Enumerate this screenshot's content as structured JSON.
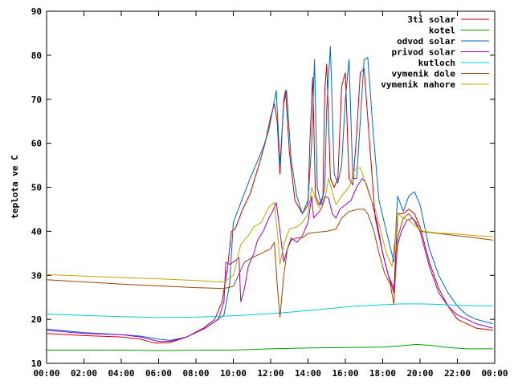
{
  "chart_data": {
    "type": "line",
    "title": "",
    "xlabel": "",
    "ylabel": "teplota ve C",
    "xlim": [
      0,
      24
    ],
    "ylim": [
      10,
      90
    ],
    "x_ticks": [
      0,
      2,
      4,
      6,
      8,
      10,
      12,
      14,
      16,
      18,
      20,
      22,
      24
    ],
    "x_tick_labels": [
      "00:00",
      "02:00",
      "04:00",
      "06:00",
      "08:00",
      "10:00",
      "12:00",
      "14:00",
      "16:00",
      "18:00",
      "20:00",
      "22:00",
      "00:00"
    ],
    "y_ticks": [
      10,
      20,
      30,
      40,
      50,
      60,
      70,
      80,
      90
    ],
    "y_tick_labels": [
      "10",
      "20",
      "30",
      "40",
      "50",
      "60",
      "70",
      "80",
      "90"
    ],
    "grid": false,
    "legend_position": "top-right",
    "series": [
      {
        "name": "3ti solar",
        "color": "#cc0000",
        "points": [
          [
            0,
            16.8
          ],
          [
            2,
            16.3
          ],
          [
            4,
            16
          ],
          [
            5,
            15.5
          ],
          [
            5.8,
            14.6
          ],
          [
            6.6,
            14.7
          ],
          [
            7.5,
            16
          ],
          [
            8.4,
            18
          ],
          [
            9,
            20
          ],
          [
            9.4,
            24
          ],
          [
            9.7,
            32
          ],
          [
            9.9,
            40
          ],
          [
            10.1,
            40.5
          ],
          [
            10.5,
            45
          ],
          [
            10.9,
            48.5
          ],
          [
            11.4,
            55.5
          ],
          [
            11.7,
            60
          ],
          [
            12,
            66
          ],
          [
            12.2,
            69
          ],
          [
            12.35,
            65
          ],
          [
            12.5,
            53
          ],
          [
            12.7,
            70
          ],
          [
            12.8,
            72
          ],
          [
            13,
            58
          ],
          [
            13.3,
            47
          ],
          [
            13.7,
            44
          ],
          [
            14,
            46
          ],
          [
            14.1,
            60
          ],
          [
            14.25,
            75
          ],
          [
            14.4,
            48
          ],
          [
            14.6,
            46
          ],
          [
            14.8,
            48
          ],
          [
            14.9,
            72
          ],
          [
            15,
            78
          ],
          [
            15.2,
            52
          ],
          [
            15.4,
            50
          ],
          [
            15.6,
            52
          ],
          [
            15.8,
            73
          ],
          [
            16,
            76
          ],
          [
            16.2,
            52
          ],
          [
            16.4,
            50.5
          ],
          [
            16.6,
            62
          ],
          [
            16.8,
            76
          ],
          [
            17,
            77
          ],
          [
            17.3,
            60
          ],
          [
            17.6,
            43
          ],
          [
            18,
            35
          ],
          [
            18.3,
            30
          ],
          [
            18.6,
            26
          ],
          [
            18.8,
            44
          ],
          [
            19.1,
            44
          ],
          [
            19.4,
            45
          ],
          [
            19.7,
            44
          ],
          [
            20,
            41
          ],
          [
            20.5,
            33
          ],
          [
            21,
            27
          ],
          [
            21.5,
            23
          ],
          [
            22,
            20
          ],
          [
            22.5,
            19
          ],
          [
            23,
            18
          ],
          [
            23.9,
            17.5
          ]
        ]
      },
      {
        "name": "kotel",
        "color": "#00a000",
        "points": [
          [
            0,
            13
          ],
          [
            2,
            13
          ],
          [
            4,
            13
          ],
          [
            6,
            12.9
          ],
          [
            8,
            13
          ],
          [
            10,
            13
          ],
          [
            12,
            13.3
          ],
          [
            14,
            13.5
          ],
          [
            16,
            13.6
          ],
          [
            18,
            13.7
          ],
          [
            19,
            14
          ],
          [
            19.8,
            14.3
          ],
          [
            20.5,
            14.1
          ],
          [
            21.5,
            13.6
          ],
          [
            22.5,
            13.3
          ],
          [
            23.9,
            13.3
          ]
        ]
      },
      {
        "name": "odvod solar",
        "color": "#0066cc",
        "points": [
          [
            0,
            17.8
          ],
          [
            2,
            17
          ],
          [
            4,
            16.5
          ],
          [
            5,
            16.2
          ],
          [
            6,
            15.5
          ],
          [
            6.6,
            15.2
          ],
          [
            7.5,
            16
          ],
          [
            8.5,
            18
          ],
          [
            9.5,
            21
          ],
          [
            9.8,
            28
          ],
          [
            10,
            42
          ],
          [
            10.4,
            46.5
          ],
          [
            10.9,
            52
          ],
          [
            11.2,
            55
          ],
          [
            11.6,
            59
          ],
          [
            11.9,
            63
          ],
          [
            12.3,
            72
          ],
          [
            12.5,
            55
          ],
          [
            12.7,
            69
          ],
          [
            12.85,
            72
          ],
          [
            13.1,
            56
          ],
          [
            13.4,
            48
          ],
          [
            13.7,
            44
          ],
          [
            14,
            47
          ],
          [
            14.2,
            60
          ],
          [
            14.35,
            79
          ],
          [
            14.5,
            50
          ],
          [
            14.7,
            46
          ],
          [
            14.9,
            50
          ],
          [
            15,
            68
          ],
          [
            15.2,
            82
          ],
          [
            15.4,
            53
          ],
          [
            15.6,
            51
          ],
          [
            15.8,
            55
          ],
          [
            16,
            70
          ],
          [
            16.2,
            79
          ],
          [
            16.4,
            52
          ],
          [
            16.6,
            52
          ],
          [
            16.8,
            65
          ],
          [
            17,
            79
          ],
          [
            17.2,
            79.5
          ],
          [
            17.5,
            62
          ],
          [
            17.8,
            47
          ],
          [
            18.2,
            40
          ],
          [
            18.6,
            33
          ],
          [
            18.8,
            48
          ],
          [
            19.1,
            44.5
          ],
          [
            19.4,
            48
          ],
          [
            19.7,
            49
          ],
          [
            20,
            46
          ],
          [
            20.5,
            36
          ],
          [
            21,
            30
          ],
          [
            21.5,
            26
          ],
          [
            22,
            23
          ],
          [
            22.5,
            21
          ],
          [
            23,
            20
          ],
          [
            23.9,
            19
          ]
        ]
      },
      {
        "name": "privod solar",
        "color": "#9900cc",
        "points": [
          [
            0,
            17.5
          ],
          [
            2,
            16.8
          ],
          [
            4,
            16.5
          ],
          [
            5,
            16
          ],
          [
            6,
            15
          ],
          [
            6.6,
            15
          ],
          [
            7.5,
            16
          ],
          [
            8.5,
            18
          ],
          [
            9.2,
            20
          ],
          [
            9.5,
            24
          ],
          [
            9.6,
            33
          ],
          [
            9.8,
            32.5
          ],
          [
            10,
            33
          ],
          [
            10.3,
            34
          ],
          [
            10.4,
            24
          ],
          [
            10.6,
            27
          ],
          [
            10.8,
            32
          ],
          [
            11.1,
            35
          ],
          [
            11.3,
            38
          ],
          [
            11.6,
            40
          ],
          [
            11.9,
            43
          ],
          [
            12.1,
            44.5
          ],
          [
            12.3,
            46.5
          ],
          [
            12.5,
            40
          ],
          [
            12.7,
            33
          ],
          [
            12.9,
            36
          ],
          [
            13.1,
            38.5
          ],
          [
            13.4,
            37.5
          ],
          [
            13.7,
            39
          ],
          [
            14,
            42
          ],
          [
            14.2,
            48
          ],
          [
            14.3,
            43
          ],
          [
            14.5,
            44
          ],
          [
            14.7,
            45
          ],
          [
            14.9,
            48
          ],
          [
            15.1,
            47.5
          ],
          [
            15.3,
            44
          ],
          [
            15.5,
            43
          ],
          [
            15.7,
            45
          ],
          [
            16,
            46
          ],
          [
            16.3,
            47
          ],
          [
            16.6,
            50
          ],
          [
            16.9,
            52
          ],
          [
            17.1,
            51
          ],
          [
            17.4,
            47
          ],
          [
            17.7,
            42
          ],
          [
            18,
            35
          ],
          [
            18.3,
            30
          ],
          [
            18.6,
            27
          ],
          [
            18.8,
            37
          ],
          [
            19,
            40
          ],
          [
            19.3,
            42.5
          ],
          [
            19.6,
            43
          ],
          [
            20,
            40
          ],
          [
            20.5,
            32
          ],
          [
            21,
            26
          ],
          [
            21.5,
            23
          ],
          [
            22,
            21
          ],
          [
            22.5,
            20
          ],
          [
            23,
            19
          ],
          [
            23.9,
            18
          ]
        ]
      },
      {
        "name": "kutloch",
        "color": "#00cccc",
        "points": [
          [
            0,
            21.2
          ],
          [
            2,
            20.9
          ],
          [
            4,
            20.6
          ],
          [
            6,
            20.4
          ],
          [
            8,
            20.5
          ],
          [
            10,
            20.8
          ],
          [
            12,
            21.3
          ],
          [
            13,
            21.6
          ],
          [
            14,
            22
          ],
          [
            15,
            22.4
          ],
          [
            16,
            22.8
          ],
          [
            17,
            23.1
          ],
          [
            18,
            23.3
          ],
          [
            19,
            23.5
          ],
          [
            20,
            23.5
          ],
          [
            21,
            23.4
          ],
          [
            22,
            23.2
          ],
          [
            23,
            23.1
          ],
          [
            23.9,
            23.1
          ]
        ]
      },
      {
        "name": "vymenik dole",
        "color": "#a04000",
        "points": [
          [
            0,
            29
          ],
          [
            2,
            28.5
          ],
          [
            4,
            28
          ],
          [
            6,
            27.6
          ],
          [
            8,
            27.2
          ],
          [
            9.5,
            27
          ],
          [
            10,
            27.5
          ],
          [
            10.6,
            33
          ],
          [
            11,
            34
          ],
          [
            11.5,
            35
          ],
          [
            12,
            36
          ],
          [
            12.2,
            37.5
          ],
          [
            12.35,
            28
          ],
          [
            12.5,
            20.5
          ],
          [
            12.7,
            30
          ],
          [
            12.9,
            36
          ],
          [
            13.1,
            38
          ],
          [
            13.4,
            38.5
          ],
          [
            13.7,
            38.5
          ],
          [
            14,
            39.5
          ],
          [
            14.5,
            39.8
          ],
          [
            15,
            40
          ],
          [
            15.5,
            40.5
          ],
          [
            15.8,
            43
          ],
          [
            16.2,
            44.5
          ],
          [
            16.7,
            45
          ],
          [
            17,
            45
          ],
          [
            17.2,
            44
          ],
          [
            17.5,
            40.5
          ],
          [
            17.8,
            35
          ],
          [
            18.1,
            30.5
          ],
          [
            18.4,
            28
          ],
          [
            18.6,
            23.5
          ],
          [
            18.8,
            38.5
          ],
          [
            19.1,
            43
          ],
          [
            19.4,
            44
          ],
          [
            19.8,
            42
          ],
          [
            20,
            40
          ],
          [
            21,
            39.5
          ],
          [
            22,
            39
          ],
          [
            23,
            38.5
          ],
          [
            23.9,
            38
          ]
        ]
      },
      {
        "name": "vymenik nahore",
        "color": "#c0a800",
        "points": [
          [
            0,
            30.2
          ],
          [
            2,
            29.8
          ],
          [
            4,
            29.5
          ],
          [
            6,
            29.2
          ],
          [
            8,
            28.8
          ],
          [
            9.5,
            28.5
          ],
          [
            10,
            30
          ],
          [
            10.4,
            37
          ],
          [
            10.8,
            39
          ],
          [
            11.1,
            41
          ],
          [
            11.5,
            42
          ],
          [
            11.9,
            45.5
          ],
          [
            12.2,
            46.5
          ],
          [
            12.4,
            38
          ],
          [
            12.5,
            32.5
          ],
          [
            12.7,
            37
          ],
          [
            13,
            40.5
          ],
          [
            13.4,
            41
          ],
          [
            13.7,
            42
          ],
          [
            14,
            44
          ],
          [
            14.2,
            50
          ],
          [
            14.5,
            46
          ],
          [
            14.7,
            45
          ],
          [
            14.9,
            47
          ],
          [
            15.1,
            52
          ],
          [
            15.3,
            49
          ],
          [
            15.5,
            46
          ],
          [
            15.8,
            48
          ],
          [
            16.2,
            50
          ],
          [
            16.5,
            54
          ],
          [
            16.8,
            54.5
          ],
          [
            17,
            52
          ],
          [
            17.3,
            48
          ],
          [
            17.6,
            45
          ],
          [
            17.9,
            40
          ],
          [
            18.2,
            35
          ],
          [
            18.5,
            32
          ],
          [
            18.8,
            44
          ],
          [
            19.1,
            43
          ],
          [
            19.4,
            42.5
          ],
          [
            19.8,
            41
          ],
          [
            20.2,
            40
          ],
          [
            21,
            39.6
          ],
          [
            22,
            39.4
          ],
          [
            23,
            39
          ],
          [
            23.9,
            38.8
          ]
        ]
      }
    ]
  }
}
